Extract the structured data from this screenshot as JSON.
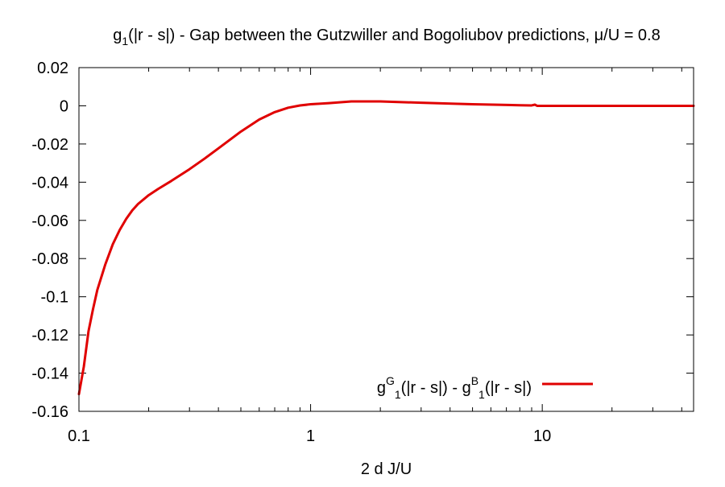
{
  "colors": {
    "series_line": "#e00000",
    "axis": "#000000",
    "background": "#ffffff"
  },
  "chart_data": {
    "type": "line",
    "title": {
      "base": "g",
      "sub": "1",
      "rest": "(|r - s|) - Gap between the Gutzwiller and Bogoliubov predictions, μ/U = 0.8"
    },
    "xlabel": "2 d J/U",
    "ylabel": "",
    "x_scale": "log",
    "xlim": [
      0.1,
      45
    ],
    "ylim": [
      -0.16,
      0.02
    ],
    "x_ticks": [
      {
        "value": 0.1,
        "label": "0.1"
      },
      {
        "value": 1,
        "label": "1"
      },
      {
        "value": 10,
        "label": "10"
      }
    ],
    "y_ticks": [
      {
        "value": 0.02,
        "label": "0.02"
      },
      {
        "value": 0,
        "label": "0"
      },
      {
        "value": -0.02,
        "label": "-0.02"
      },
      {
        "value": -0.04,
        "label": "-0.04"
      },
      {
        "value": -0.06,
        "label": "-0.06"
      },
      {
        "value": -0.08,
        "label": "-0.08"
      },
      {
        "value": -0.1,
        "label": "-0.1"
      },
      {
        "value": -0.12,
        "label": "-0.12"
      },
      {
        "value": -0.14,
        "label": "-0.14"
      },
      {
        "value": -0.16,
        "label": "-0.16"
      }
    ],
    "grid": false,
    "legend_position": "bottom-right",
    "legend": {
      "parts": [
        {
          "t": "g",
          "s": "normal"
        },
        {
          "t": "G",
          "s": "sup"
        },
        {
          "t": "1",
          "s": "sub"
        },
        {
          "t": "(|r - s|) - g",
          "s": "normal"
        },
        {
          "t": "B",
          "s": "sup"
        },
        {
          "t": "1",
          "s": "sub"
        },
        {
          "t": "(|r - s|)",
          "s": "normal"
        }
      ]
    },
    "series": [
      {
        "color": "#e00000",
        "x": [
          0.1,
          0.105,
          0.11,
          0.115,
          0.12,
          0.13,
          0.14,
          0.15,
          0.16,
          0.17,
          0.18,
          0.2,
          0.22,
          0.25,
          0.3,
          0.35,
          0.4,
          0.5,
          0.6,
          0.7,
          0.8,
          0.9,
          1.0,
          1.2,
          1.5,
          2.0,
          3.0,
          5.0,
          8.0,
          9.0,
          9.3,
          9.5,
          12,
          20,
          30,
          45
        ],
        "y": [
          -0.151,
          -0.1365,
          -0.118,
          -0.1065,
          -0.0965,
          -0.083,
          -0.0725,
          -0.065,
          -0.0592,
          -0.0547,
          -0.0514,
          -0.0468,
          -0.0435,
          -0.0394,
          -0.0332,
          -0.0275,
          -0.0223,
          -0.0135,
          -0.0072,
          -0.0033,
          -0.001,
          0.0002,
          0.0008,
          0.0014,
          0.0023,
          0.0023,
          0.0016,
          0.0008,
          0.0003,
          0.0002,
          0.0006,
          0.0,
          0.0,
          0.0,
          0.0,
          0.0
        ]
      }
    ]
  }
}
